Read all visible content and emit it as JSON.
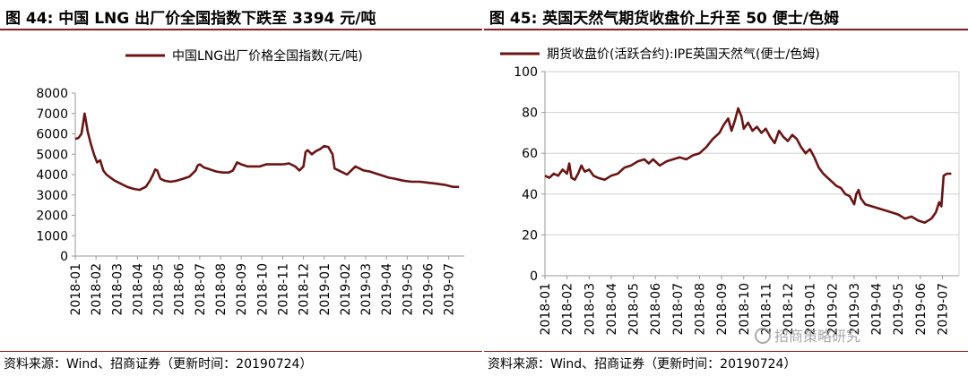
{
  "colors": {
    "line": "#6B1414",
    "accent": "#8B1A1A",
    "axis": "#999999"
  },
  "watermark": {
    "text": "招商策略研究",
    "icon": "wechat-icon"
  },
  "panels": [
    {
      "title": "图 44:  中国 LNG 出厂价全国指数下跌至 3394 元/吨",
      "source": "资料来源：Wind、招商证券（更新时间：20190724）",
      "chart_data": {
        "type": "line",
        "title": "图 44:  中国 LNG 出厂价全国指数下跌至 3394 元/吨",
        "xlabel": "",
        "ylabel": "",
        "ylim": [
          0,
          8000
        ],
        "yticks": [
          0,
          1000,
          2000,
          3000,
          4000,
          5000,
          6000,
          7000,
          8000
        ],
        "xlim": [
          0,
          18.75
        ],
        "xticks": [
          "2018-01",
          "2018-02",
          "2018-03",
          "2018-04",
          "2018-05",
          "2018-06",
          "2018-07",
          "2018-08",
          "2018-09",
          "2018-10",
          "2018-11",
          "2018-12",
          "2019-01",
          "2019-02",
          "2019-03",
          "2019-04",
          "2019-05",
          "2019-06",
          "2019-07"
        ],
        "legend": {
          "position": "top-center"
        },
        "grid": false,
        "series": [
          {
            "name": "中国LNG出厂价格全国指数(元/吨)",
            "points": [
              [
                0,
                5750
              ],
              [
                0.15,
                5800
              ],
              [
                0.3,
                6000
              ],
              [
                0.45,
                7000
              ],
              [
                0.6,
                6100
              ],
              [
                0.75,
                5500
              ],
              [
                0.9,
                5000
              ],
              [
                1.05,
                4600
              ],
              [
                1.2,
                4700
              ],
              [
                1.35,
                4200
              ],
              [
                1.5,
                4000
              ],
              [
                1.7,
                3850
              ],
              [
                1.9,
                3700
              ],
              [
                2.1,
                3600
              ],
              [
                2.3,
                3500
              ],
              [
                2.5,
                3400
              ],
              [
                2.8,
                3300
              ],
              [
                3.1,
                3250
              ],
              [
                3.4,
                3400
              ],
              [
                3.6,
                3700
              ],
              [
                3.75,
                4000
              ],
              [
                3.85,
                4250
              ],
              [
                3.95,
                4200
              ],
              [
                4.1,
                3800
              ],
              [
                4.3,
                3700
              ],
              [
                4.6,
                3650
              ],
              [
                4.9,
                3700
              ],
              [
                5.2,
                3800
              ],
              [
                5.5,
                3900
              ],
              [
                5.8,
                4200
              ],
              [
                5.9,
                4450
              ],
              [
                6.0,
                4500
              ],
              [
                6.2,
                4350
              ],
              [
                6.5,
                4250
              ],
              [
                6.8,
                4150
              ],
              [
                7.1,
                4100
              ],
              [
                7.4,
                4100
              ],
              [
                7.6,
                4200
              ],
              [
                7.8,
                4600
              ],
              [
                8.0,
                4500
              ],
              [
                8.3,
                4400
              ],
              [
                8.6,
                4400
              ],
              [
                8.9,
                4400
              ],
              [
                9.2,
                4500
              ],
              [
                9.6,
                4500
              ],
              [
                10.0,
                4500
              ],
              [
                10.3,
                4550
              ],
              [
                10.6,
                4400
              ],
              [
                10.8,
                4200
              ],
              [
                11.0,
                4400
              ],
              [
                11.1,
                5100
              ],
              [
                11.2,
                5200
              ],
              [
                11.4,
                5000
              ],
              [
                11.6,
                5150
              ],
              [
                11.8,
                5250
              ],
              [
                12.0,
                5400
              ],
              [
                12.2,
                5350
              ],
              [
                12.4,
                5000
              ],
              [
                12.5,
                4300
              ],
              [
                12.7,
                4200
              ],
              [
                12.9,
                4100
              ],
              [
                13.1,
                4000
              ],
              [
                13.3,
                4200
              ],
              [
                13.5,
                4400
              ],
              [
                13.7,
                4300
              ],
              [
                13.9,
                4200
              ],
              [
                14.2,
                4150
              ],
              [
                14.5,
                4050
              ],
              [
                14.8,
                3950
              ],
              [
                15.1,
                3850
              ],
              [
                15.4,
                3800
              ],
              [
                15.8,
                3700
              ],
              [
                16.2,
                3650
              ],
              [
                16.6,
                3650
              ],
              [
                17.0,
                3600
              ],
              [
                17.4,
                3550
              ],
              [
                17.8,
                3500
              ],
              [
                18.2,
                3400
              ],
              [
                18.5,
                3394
              ]
            ]
          }
        ]
      }
    },
    {
      "title": "图 45:  英国天然气期货收盘价上升至 50 便士/色姆",
      "source": "资料来源：Wind、招商证券（更新时间：20190724）",
      "chart_data": {
        "type": "line",
        "title": "图 45:  英国天然气期货收盘价上升至 50 便士/色姆",
        "xlabel": "",
        "ylabel": "",
        "ylim": [
          0,
          100
        ],
        "yticks": [
          0,
          20,
          40,
          60,
          80,
          100
        ],
        "xlim": [
          0,
          18.75
        ],
        "xticks": [
          "2018-01",
          "2018-02",
          "2018-03",
          "2018-04",
          "2018-05",
          "2018-06",
          "2018-07",
          "2018-08",
          "2018-09",
          "2018-10",
          "2018-11",
          "2018-12",
          "2019-01",
          "2019-02",
          "2019-03",
          "2019-04",
          "2019-05",
          "2019-06",
          "2019-07"
        ],
        "legend": {
          "position": "top-left"
        },
        "grid": true,
        "series": [
          {
            "name": "期货收盘价(活跃合约):IPE英国天然气(便士/色姆)",
            "points": [
              [
                0,
                49
              ],
              [
                0.2,
                48
              ],
              [
                0.4,
                50
              ],
              [
                0.6,
                49
              ],
              [
                0.8,
                52
              ],
              [
                1.0,
                50
              ],
              [
                1.1,
                55
              ],
              [
                1.2,
                48
              ],
              [
                1.35,
                47
              ],
              [
                1.5,
                50
              ],
              [
                1.65,
                54
              ],
              [
                1.8,
                51
              ],
              [
                2.0,
                52
              ],
              [
                2.2,
                49
              ],
              [
                2.4,
                48
              ],
              [
                2.7,
                47
              ],
              [
                3.0,
                49
              ],
              [
                3.3,
                50
              ],
              [
                3.6,
                53
              ],
              [
                3.9,
                54
              ],
              [
                4.2,
                56
              ],
              [
                4.5,
                57
              ],
              [
                4.7,
                55
              ],
              [
                4.9,
                57
              ],
              [
                5.2,
                54
              ],
              [
                5.5,
                56
              ],
              [
                5.8,
                57
              ],
              [
                6.1,
                58
              ],
              [
                6.4,
                57
              ],
              [
                6.7,
                59
              ],
              [
                7.0,
                60
              ],
              [
                7.3,
                63
              ],
              [
                7.6,
                67
              ],
              [
                7.9,
                70
              ],
              [
                8.1,
                74
              ],
              [
                8.3,
                77
              ],
              [
                8.45,
                71
              ],
              [
                8.6,
                76
              ],
              [
                8.75,
                82
              ],
              [
                8.9,
                78
              ],
              [
                9.0,
                72
              ],
              [
                9.2,
                75
              ],
              [
                9.4,
                71
              ],
              [
                9.6,
                73
              ],
              [
                9.8,
                70
              ],
              [
                10.0,
                72
              ],
              [
                10.2,
                68
              ],
              [
                10.4,
                65
              ],
              [
                10.6,
                71
              ],
              [
                10.8,
                68
              ],
              [
                11.0,
                66
              ],
              [
                11.2,
                69
              ],
              [
                11.4,
                67
              ],
              [
                11.6,
                63
              ],
              [
                11.8,
                60
              ],
              [
                12.0,
                62
              ],
              [
                12.2,
                58
              ],
              [
                12.4,
                53
              ],
              [
                12.6,
                50
              ],
              [
                12.8,
                48
              ],
              [
                13.0,
                46
              ],
              [
                13.2,
                44
              ],
              [
                13.4,
                43
              ],
              [
                13.6,
                40
              ],
              [
                13.8,
                39
              ],
              [
                14.0,
                35
              ],
              [
                14.1,
                40
              ],
              [
                14.2,
                42
              ],
              [
                14.3,
                38
              ],
              [
                14.5,
                35
              ],
              [
                14.8,
                34
              ],
              [
                15.1,
                33
              ],
              [
                15.4,
                32
              ],
              [
                15.7,
                31
              ],
              [
                16.0,
                30
              ],
              [
                16.3,
                28
              ],
              [
                16.6,
                29
              ],
              [
                16.9,
                27
              ],
              [
                17.2,
                26
              ],
              [
                17.5,
                28
              ],
              [
                17.7,
                31
              ],
              [
                17.85,
                36
              ],
              [
                17.95,
                34
              ],
              [
                18.05,
                49
              ],
              [
                18.2,
                50
              ],
              [
                18.4,
                50
              ]
            ]
          }
        ]
      }
    }
  ]
}
